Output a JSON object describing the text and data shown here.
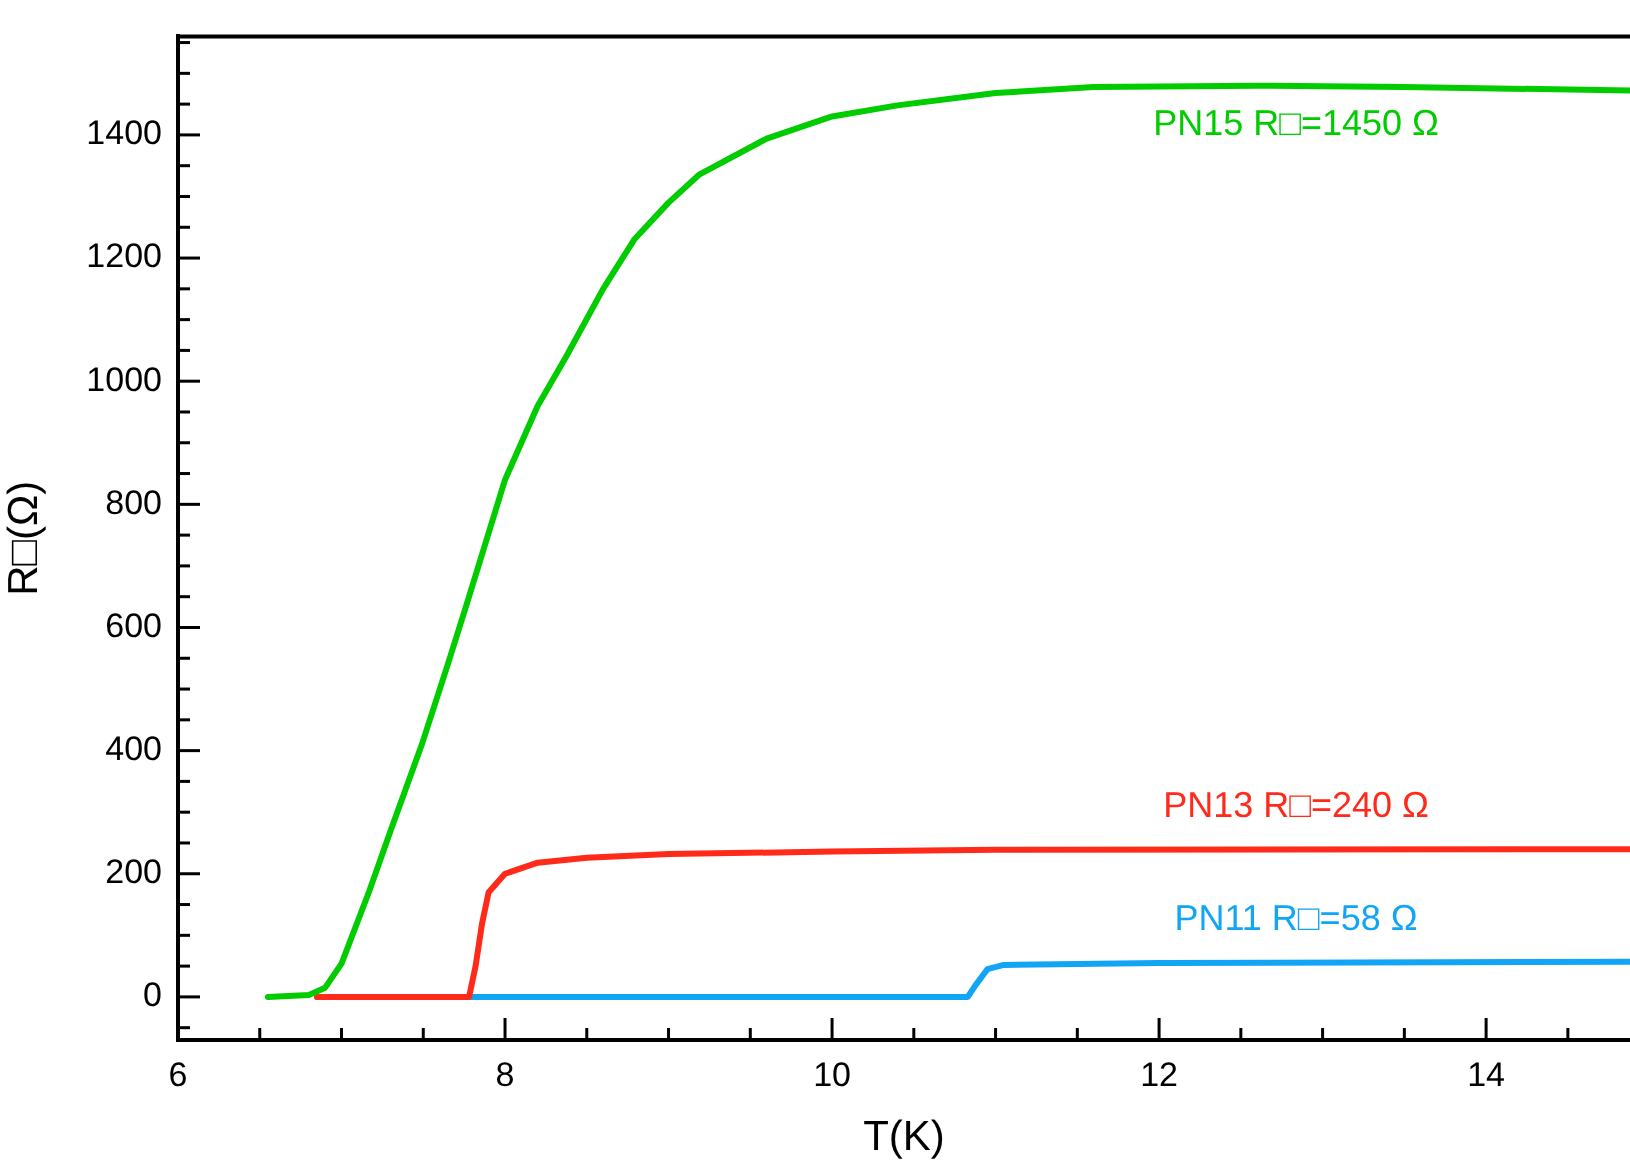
{
  "chart_data": {
    "type": "line",
    "xlabel": "T(K)",
    "ylabel": "R□(Ω)",
    "xlim": [
      6,
      14.88
    ],
    "ylim": [
      -70,
      1560
    ],
    "xticks": [
      6,
      {
        "value": 6.5,
        "label": null
      },
      {
        "value": 7,
        "label": null
      },
      {
        "value": 7.5,
        "label": null
      },
      8,
      {
        "value": 8.5,
        "label": null
      },
      {
        "value": 9,
        "label": null
      },
      {
        "value": 9.5,
        "label": null
      },
      10,
      {
        "value": 10.5,
        "label": null
      },
      {
        "value": 11,
        "label": null
      },
      {
        "value": 11.5,
        "label": null
      },
      12,
      {
        "value": 12.5,
        "label": null
      },
      {
        "value": 13,
        "label": null
      },
      {
        "value": 13.5,
        "label": null
      },
      14,
      {
        "value": 14.5,
        "label": null
      }
    ],
    "yticks": [
      {
        "value": -50,
        "label": null
      },
      0,
      {
        "value": 50,
        "label": null
      },
      {
        "value": 100,
        "label": null
      },
      {
        "value": 150,
        "label": null
      },
      200,
      {
        "value": 250,
        "label": null
      },
      {
        "value": 300,
        "label": null
      },
      {
        "value": 350,
        "label": null
      },
      400,
      {
        "value": 450,
        "label": null
      },
      {
        "value": 500,
        "label": null
      },
      {
        "value": 550,
        "label": null
      },
      600,
      {
        "value": 650,
        "label": null
      },
      {
        "value": 700,
        "label": null
      },
      {
        "value": 750,
        "label": null
      },
      800,
      {
        "value": 850,
        "label": null
      },
      {
        "value": 900,
        "label": null
      },
      {
        "value": 950,
        "label": null
      },
      1000,
      {
        "value": 1050,
        "label": null
      },
      {
        "value": 1100,
        "label": null
      },
      {
        "value": 1150,
        "label": null
      },
      1200,
      {
        "value": 1250,
        "label": null
      },
      {
        "value": 1300,
        "label": null
      },
      {
        "value": 1350,
        "label": null
      },
      1400,
      {
        "value": 1450,
        "label": null
      },
      {
        "value": 1500,
        "label": null
      },
      {
        "value": 1550,
        "label": null
      }
    ],
    "grid": false,
    "legend": false,
    "marker": "none",
    "line_style": "solid",
    "series": [
      {
        "name": "PN15 R□=1450 Ω",
        "color": "#00cc00",
        "x": [
          6.55,
          6.8,
          6.9,
          7.0,
          7.17,
          7.3,
          7.49,
          7.65,
          7.76,
          8.0,
          8.2,
          8.37,
          8.6,
          8.79,
          9.0,
          9.19,
          9.6,
          10.0,
          10.4,
          11.0,
          11.6,
          12.6,
          13.5,
          14.88
        ],
        "values": [
          0,
          3,
          15,
          54,
          172,
          270,
          409,
          540,
          633,
          840,
          960,
          1038,
          1150,
          1230,
          1290,
          1336,
          1394,
          1430,
          1448,
          1468,
          1478,
          1480,
          1478,
          1472
        ]
      },
      {
        "name": "PN13 R□=240 Ω",
        "color": "#ff2a1a",
        "x": [
          6.85,
          7.78,
          7.82,
          7.86,
          7.9,
          8.0,
          8.2,
          8.5,
          9.0,
          10.0,
          11.0,
          14.88
        ],
        "values": [
          0,
          0,
          50,
          120,
          170,
          200,
          218,
          226,
          232,
          236,
          239,
          240
        ]
      },
      {
        "name": "PN11 R□=58 Ω",
        "color": "#12a5f5",
        "x": [
          6.85,
          10.83,
          10.88,
          10.95,
          11.05,
          12.0,
          14.88
        ],
        "values": [
          0,
          0,
          20,
          45,
          52,
          55,
          57
        ]
      }
    ]
  }
}
